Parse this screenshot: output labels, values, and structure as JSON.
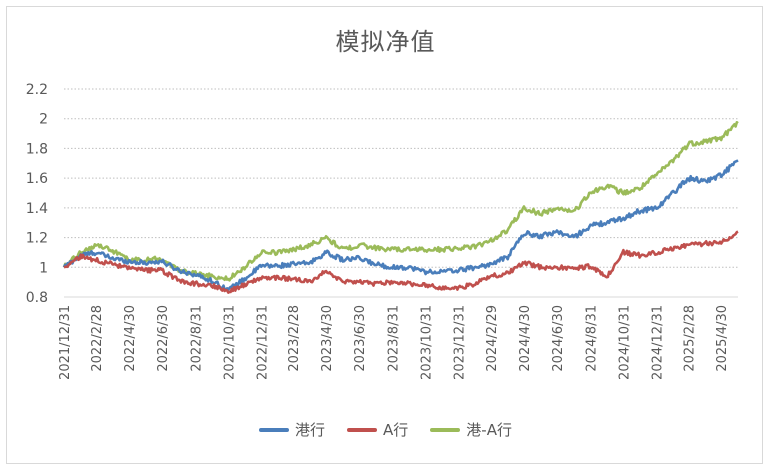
{
  "chart_data": {
    "type": "line",
    "title": "模拟净值",
    "xlabel": "",
    "ylabel": "",
    "ylim": [
      0.8,
      2.2
    ],
    "yticks": [
      "0.8",
      "1",
      "1.2",
      "1.4",
      "1.6",
      "1.8",
      "2",
      "2.2"
    ],
    "grid": "horizontal dotted",
    "legend_position": "bottom",
    "x": [
      "2021/12/31",
      "2022/1/31",
      "2022/2/28",
      "2022/3/31",
      "2022/4/30",
      "2022/5/31",
      "2022/6/30",
      "2022/7/31",
      "2022/8/31",
      "2022/9/30",
      "2022/10/31",
      "2022/11/30",
      "2022/12/31",
      "2023/1/31",
      "2023/2/28",
      "2023/3/31",
      "2023/4/30",
      "2023/5/31",
      "2023/6/30",
      "2023/7/31",
      "2023/8/31",
      "2023/9/30",
      "2023/10/31",
      "2023/11/30",
      "2023/12/31",
      "2024/1/31",
      "2024/2/29",
      "2024/3/31",
      "2024/4/30",
      "2024/5/31",
      "2024/6/30",
      "2024/7/31",
      "2024/8/31",
      "2024/9/30",
      "2024/10/31",
      "2024/11/30",
      "2024/12/31",
      "2025/1/31",
      "2025/2/28",
      "2025/3/31",
      "2025/4/30",
      "2025/5/31"
    ],
    "xticks": [
      "2021/12/31",
      "2022/2/28",
      "2022/4/30",
      "2022/6/30",
      "2022/8/31",
      "2022/10/31",
      "2022/12/31",
      "2023/2/28",
      "2023/4/30",
      "2023/6/30",
      "2023/8/31",
      "2023/10/31",
      "2023/12/31",
      "2024/2/29",
      "2024/4/30",
      "2024/6/30",
      "2024/8/31",
      "2024/10/31",
      "2024/12/31",
      "2025/2/28",
      "2025/4/30"
    ],
    "series": [
      {
        "name": "港行",
        "color": "#4a7ebb",
        "values": [
          1.0,
          1.08,
          1.1,
          1.06,
          1.04,
          1.03,
          1.04,
          0.98,
          0.95,
          0.91,
          0.85,
          0.92,
          1.01,
          1.01,
          1.02,
          1.03,
          1.1,
          1.05,
          1.06,
          1.02,
          1.0,
          1.0,
          0.97,
          0.97,
          0.98,
          1.0,
          1.02,
          1.07,
          1.23,
          1.21,
          1.24,
          1.2,
          1.28,
          1.3,
          1.33,
          1.38,
          1.4,
          1.5,
          1.6,
          1.58,
          1.62,
          1.72
        ]
      },
      {
        "name": "A行",
        "color": "#c0504d",
        "values": [
          1.0,
          1.07,
          1.05,
          1.02,
          0.99,
          0.98,
          0.98,
          0.91,
          0.89,
          0.88,
          0.84,
          0.88,
          0.93,
          0.93,
          0.92,
          0.9,
          0.98,
          0.9,
          0.9,
          0.89,
          0.9,
          0.89,
          0.88,
          0.86,
          0.86,
          0.89,
          0.94,
          0.96,
          1.03,
          1.0,
          1.0,
          0.99,
          1.01,
          0.93,
          1.1,
          1.08,
          1.1,
          1.13,
          1.15,
          1.16,
          1.17,
          1.24
        ]
      },
      {
        "name": "港-A行",
        "color": "#9bbb59",
        "values": [
          1.0,
          1.1,
          1.15,
          1.11,
          1.05,
          1.05,
          1.06,
          0.98,
          0.96,
          0.94,
          0.92,
          1.0,
          1.1,
          1.1,
          1.12,
          1.15,
          1.2,
          1.12,
          1.15,
          1.13,
          1.12,
          1.12,
          1.12,
          1.12,
          1.13,
          1.14,
          1.18,
          1.25,
          1.4,
          1.36,
          1.4,
          1.37,
          1.5,
          1.55,
          1.5,
          1.53,
          1.62,
          1.72,
          1.83,
          1.85,
          1.87,
          1.97
        ]
      }
    ]
  }
}
